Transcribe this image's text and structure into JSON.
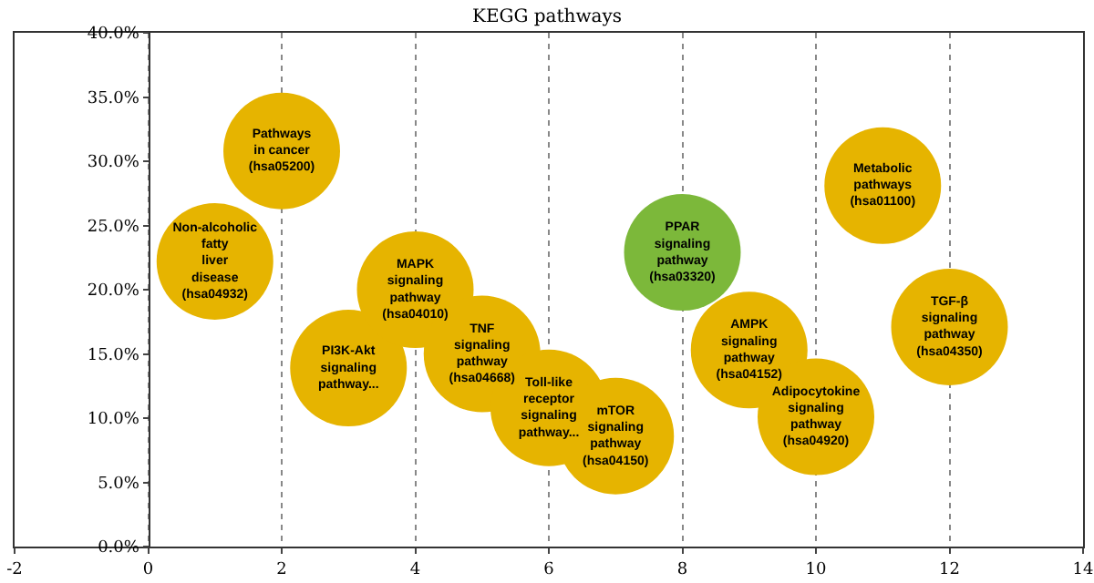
{
  "chart_data": {
    "type": "bubble",
    "title": "KEGG pathways",
    "xlim": [
      -2,
      14
    ],
    "xticks": [
      -2,
      0,
      2,
      4,
      6,
      8,
      10,
      12,
      14
    ],
    "ylim": [
      0,
      40
    ],
    "yticks": [
      {
        "value": 0,
        "label": "0.0%"
      },
      {
        "value": 5,
        "label": "5.0%"
      },
      {
        "value": 10,
        "label": "10.0%"
      },
      {
        "value": 15,
        "label": "15.0%"
      },
      {
        "value": 20,
        "label": "20.0%"
      },
      {
        "value": 25,
        "label": "25.0%"
      },
      {
        "value": 30,
        "label": "30.0%"
      },
      {
        "value": 35,
        "label": "35.0%"
      },
      {
        "value": 40,
        "label": "40.0%"
      }
    ],
    "grid": "x",
    "legend": false,
    "series": [
      {
        "name": "Non-alcoholic fatty liver disease (hsa04932)",
        "color": "#e6b400",
        "x": [
          1
        ],
        "values": [
          22.2
        ],
        "sizes": [
          1
        ]
      },
      {
        "name": "Pathways in cancer (hsa05200)",
        "color": "#e6b400",
        "x": [
          2
        ],
        "values": [
          30.8
        ],
        "sizes": [
          1
        ]
      },
      {
        "name": "PI3K-Akt signaling pathway...",
        "color": "#e6b400",
        "x": [
          3
        ],
        "values": [
          13.9
        ],
        "sizes": [
          1
        ]
      },
      {
        "name": "MAPK signaling pathway (hsa04010)",
        "color": "#e6b400",
        "x": [
          4
        ],
        "values": [
          20.0
        ],
        "sizes": [
          1
        ]
      },
      {
        "name": "TNF signaling pathway (hsa04668)",
        "color": "#e6b400",
        "x": [
          5
        ],
        "values": [
          15.0
        ],
        "sizes": [
          1
        ]
      },
      {
        "name": "Toll-like receptor signaling pathway...",
        "color": "#e6b400",
        "x": [
          6
        ],
        "values": [
          10.8
        ],
        "sizes": [
          1
        ]
      },
      {
        "name": "mTOR signaling pathway (hsa04150)",
        "color": "#e6b400",
        "x": [
          7
        ],
        "values": [
          8.6
        ],
        "sizes": [
          1
        ]
      },
      {
        "name": "PPAR signaling pathway (hsa03320)",
        "color": "#7cb83a",
        "x": [
          8
        ],
        "values": [
          22.9
        ],
        "sizes": [
          1
        ]
      },
      {
        "name": "AMPK signaling pathway (hsa04152)",
        "color": "#e6b400",
        "x": [
          9
        ],
        "values": [
          15.3
        ],
        "sizes": [
          1
        ]
      },
      {
        "name": "Adipocytokine signaling pathway (hsa04920)",
        "color": "#e6b400",
        "x": [
          10
        ],
        "values": [
          10.1
        ],
        "sizes": [
          1
        ]
      },
      {
        "name": "Metabolic pathways (hsa01100)",
        "color": "#e6b400",
        "x": [
          11
        ],
        "values": [
          28.1
        ],
        "sizes": [
          1
        ]
      },
      {
        "name": "TGF-β signaling pathway (hsa04350)",
        "color": "#e6b400",
        "x": [
          12
        ],
        "values": [
          17.1
        ],
        "sizes": [
          1
        ]
      }
    ]
  }
}
